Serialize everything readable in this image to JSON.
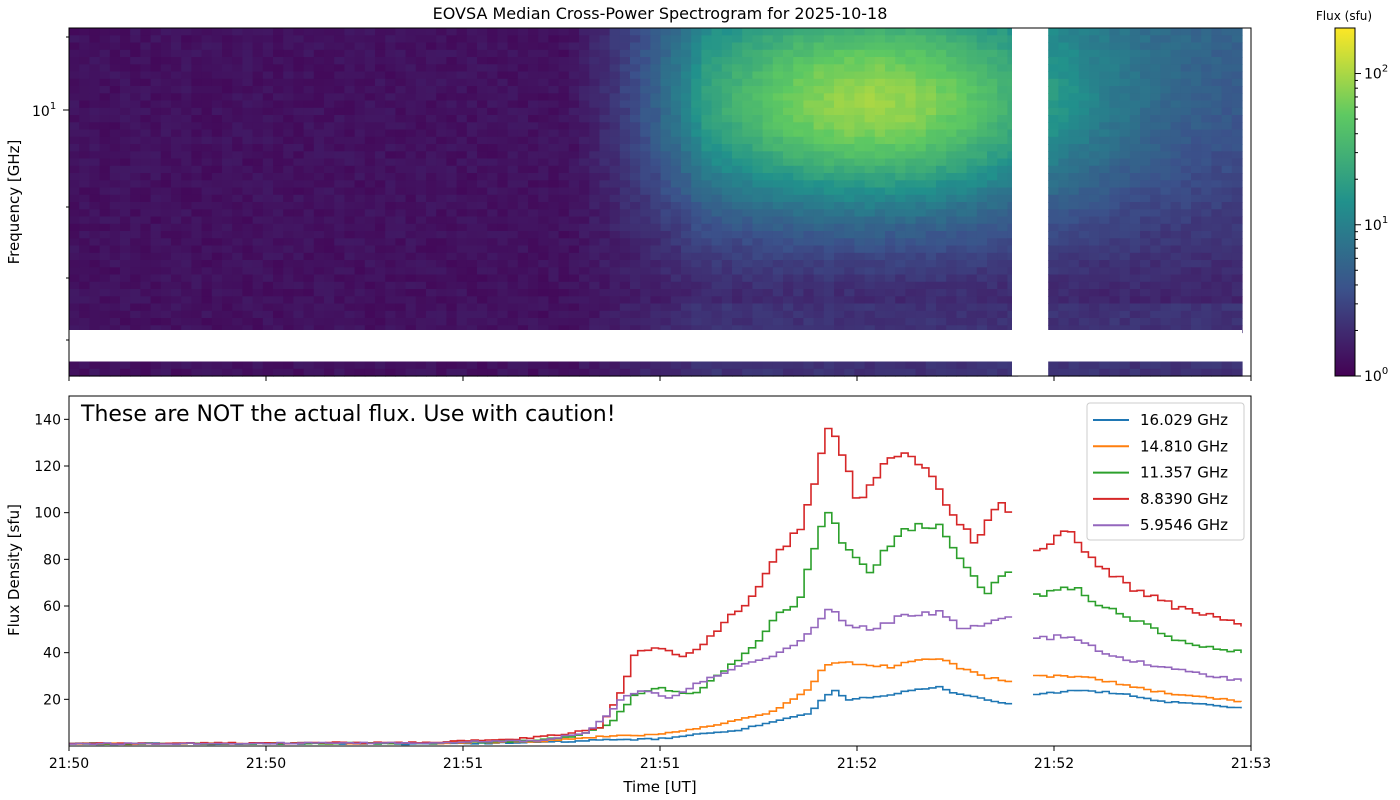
{
  "chart_data": [
    {
      "type": "heatmap",
      "title": "EOVSA Median Cross-Power Spectrogram for 2025-10-18",
      "ylabel": "Frequency [GHz]",
      "ylabel_tick": "10",
      "ylabel_tick_exp": "1",
      "yscale": "log",
      "colorbar": {
        "label": "Flux (sfu)",
        "scale": "log",
        "colormap": "viridis",
        "ticks": [
          {
            "base": "10",
            "exp": "0",
            "value": 1
          },
          {
            "base": "10",
            "exp": "1",
            "value": 10
          },
          {
            "base": "10",
            "exp": "2",
            "value": 100
          }
        ],
        "colors": [
          "#440154",
          "#3b528b",
          "#21918c",
          "#5ec962",
          "#fde725"
        ]
      }
    },
    {
      "type": "line",
      "step": true,
      "annotation": "These are NOT the actual flux. Use with caution!",
      "xlabel": "Time [UT]",
      "ylabel": "Flux Density [sfu]",
      "ylim": [
        0,
        150
      ],
      "yticks": [
        "20",
        "40",
        "60",
        "80",
        "100",
        "120",
        "140"
      ],
      "xticks": [
        "21:50",
        "21:50",
        "21:51",
        "21:51",
        "21:52",
        "21:52",
        "21:53"
      ],
      "legend_position": "top-right",
      "gap_fraction": [
        0.801,
        0.821
      ],
      "series": [
        {
          "name": "16.029 GHz",
          "color": "#1f77b4",
          "anchors": [
            [
              0,
              1
            ],
            [
              0.3,
              1
            ],
            [
              0.4,
              1.5
            ],
            [
              0.45,
              2.5
            ],
            [
              0.5,
              3
            ],
            [
              0.57,
              7
            ],
            [
              0.63,
              14
            ],
            [
              0.64,
              20
            ],
            [
              0.65,
              24
            ],
            [
              0.66,
              20
            ],
            [
              0.7,
              22
            ],
            [
              0.72,
              24
            ],
            [
              0.74,
              25
            ],
            [
              0.76,
              22
            ],
            [
              0.78,
              20
            ],
            [
              0.8,
              18
            ],
            [
              0.82,
              22
            ],
            [
              0.86,
              24
            ],
            [
              0.9,
              22
            ],
            [
              0.93,
              19
            ],
            [
              0.96,
              18
            ],
            [
              1.0,
              16
            ]
          ]
        },
        {
          "name": "14.810 GHz",
          "color": "#ff7f0e",
          "anchors": [
            [
              0,
              1
            ],
            [
              0.3,
              1.2
            ],
            [
              0.4,
              2
            ],
            [
              0.45,
              4
            ],
            [
              0.5,
              5
            ],
            [
              0.55,
              9
            ],
            [
              0.6,
              15
            ],
            [
              0.63,
              25
            ],
            [
              0.64,
              33
            ],
            [
              0.65,
              36
            ],
            [
              0.7,
              34
            ],
            [
              0.72,
              37
            ],
            [
              0.74,
              38
            ],
            [
              0.76,
              33
            ],
            [
              0.78,
              29
            ],
            [
              0.8,
              28
            ],
            [
              0.82,
              30
            ],
            [
              0.86,
              30
            ],
            [
              0.9,
              26
            ],
            [
              0.93,
              23
            ],
            [
              0.96,
              21
            ],
            [
              1.0,
              19
            ]
          ]
        },
        {
          "name": "11.357 GHz",
          "color": "#2ca02c",
          "anchors": [
            [
              0,
              1
            ],
            [
              0.3,
              1.2
            ],
            [
              0.38,
              2
            ],
            [
              0.43,
              4
            ],
            [
              0.46,
              10
            ],
            [
              0.48,
              22
            ],
            [
              0.5,
              25
            ],
            [
              0.53,
              22
            ],
            [
              0.55,
              30
            ],
            [
              0.58,
              42
            ],
            [
              0.6,
              55
            ],
            [
              0.62,
              62
            ],
            [
              0.63,
              80
            ],
            [
              0.645,
              102
            ],
            [
              0.66,
              85
            ],
            [
              0.68,
              74
            ],
            [
              0.7,
              88
            ],
            [
              0.72,
              95
            ],
            [
              0.74,
              94
            ],
            [
              0.76,
              80
            ],
            [
              0.78,
              66
            ],
            [
              0.8,
              75
            ],
            [
              0.82,
              64
            ],
            [
              0.85,
              69
            ],
            [
              0.88,
              60
            ],
            [
              0.91,
              53
            ],
            [
              0.94,
              46
            ],
            [
              0.97,
              42
            ],
            [
              1.0,
              40
            ]
          ]
        },
        {
          "name": "8.8390 GHz",
          "color": "#d62728",
          "anchors": [
            [
              0,
              1
            ],
            [
              0.3,
              1.5
            ],
            [
              0.38,
              3
            ],
            [
              0.42,
              5
            ],
            [
              0.45,
              8
            ],
            [
              0.47,
              25
            ],
            [
              0.48,
              40
            ],
            [
              0.5,
              43
            ],
            [
              0.52,
              38
            ],
            [
              0.54,
              44
            ],
            [
              0.56,
              55
            ],
            [
              0.58,
              64
            ],
            [
              0.6,
              82
            ],
            [
              0.62,
              92
            ],
            [
              0.635,
              115
            ],
            [
              0.645,
              135
            ],
            [
              0.655,
              128
            ],
            [
              0.67,
              105
            ],
            [
              0.69,
              118
            ],
            [
              0.71,
              126
            ],
            [
              0.73,
              118
            ],
            [
              0.75,
              100
            ],
            [
              0.77,
              88
            ],
            [
              0.79,
              103
            ],
            [
              0.8,
              102
            ],
            [
              0.82,
              84
            ],
            [
              0.85,
              92
            ],
            [
              0.88,
              76
            ],
            [
              0.91,
              66
            ],
            [
              0.94,
              60
            ],
            [
              0.97,
              56
            ],
            [
              1.0,
              52
            ]
          ]
        },
        {
          "name": "5.9546 GHz",
          "color": "#9467bd",
          "anchors": [
            [
              0,
              1
            ],
            [
              0.3,
              1.3
            ],
            [
              0.4,
              2.5
            ],
            [
              0.44,
              6
            ],
            [
              0.46,
              15
            ],
            [
              0.47,
              21
            ],
            [
              0.49,
              24
            ],
            [
              0.51,
              20
            ],
            [
              0.53,
              26
            ],
            [
              0.55,
              30
            ],
            [
              0.58,
              36
            ],
            [
              0.6,
              39
            ],
            [
              0.62,
              44
            ],
            [
              0.635,
              52
            ],
            [
              0.645,
              59
            ],
            [
              0.66,
              53
            ],
            [
              0.68,
              50
            ],
            [
              0.7,
              54
            ],
            [
              0.72,
              57
            ],
            [
              0.74,
              57
            ],
            [
              0.76,
              50
            ],
            [
              0.78,
              52
            ],
            [
              0.8,
              55
            ],
            [
              0.82,
              46
            ],
            [
              0.85,
              47
            ],
            [
              0.88,
              40
            ],
            [
              0.91,
              36
            ],
            [
              0.94,
              33
            ],
            [
              0.97,
              30
            ],
            [
              1.0,
              28
            ]
          ]
        }
      ]
    }
  ]
}
